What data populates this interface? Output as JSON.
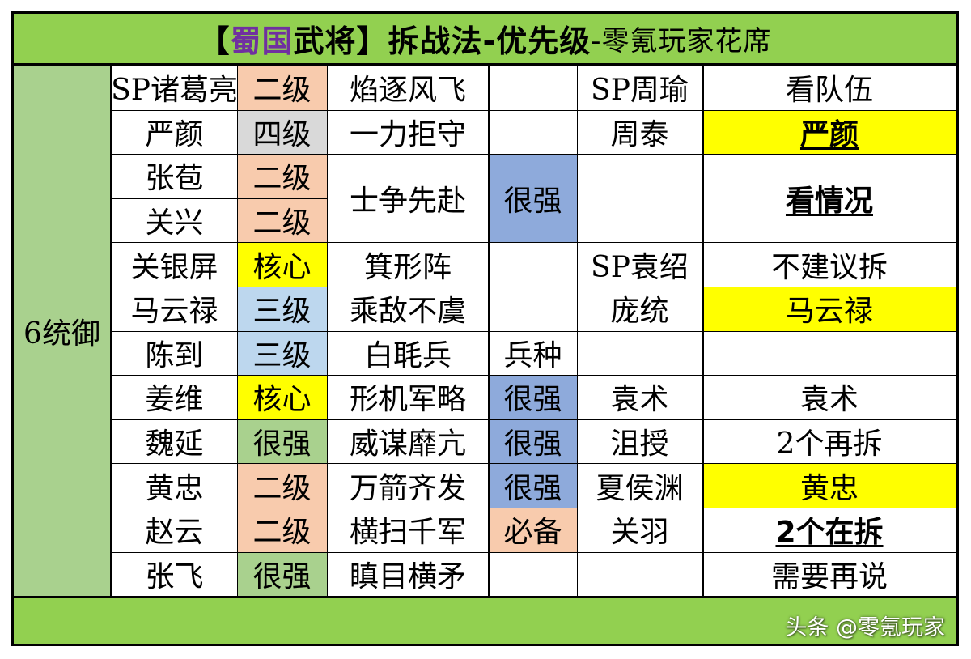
{
  "title": {
    "bracket_open": "【",
    "shu": "蜀国",
    "wujiang": "武将",
    "bracket_close": "】",
    "main": "拆战法-优先级",
    "author": "-零氪玩家花席"
  },
  "side_label": "6统御",
  "colors": {
    "header_green": "#92d050",
    "side_green": "#a9d18e",
    "orange": "#f8cbad",
    "gray": "#d9d9d9",
    "yellow": "#ffff00",
    "lightblue": "#bdd7ee",
    "green": "#a9d18e",
    "blue": "#8eaadb",
    "purple": "#7030a0"
  },
  "rows": [
    {
      "general": "SP诸葛亮",
      "rank": "二级",
      "rank_color": "orange",
      "tactic": "焰逐风飞",
      "eval": "",
      "eval_color": "",
      "target": "SP周瑜",
      "advice": "看队伍",
      "advice_color": "",
      "advice_style": ""
    },
    {
      "general": "严颜",
      "rank": "四级",
      "rank_color": "gray",
      "tactic": "一力拒守",
      "eval": "",
      "eval_color": "",
      "target": "周泰",
      "advice": "严颜",
      "advice_color": "yellow",
      "advice_style": "bold-ul"
    },
    {
      "general": "张苞",
      "rank": "二级",
      "rank_color": "orange",
      "tactic": "士争先赴",
      "eval": "很强",
      "eval_color": "blue",
      "target": "",
      "advice": "看情况",
      "advice_color": "",
      "advice_style": "bold-ul"
    },
    {
      "general": "关兴",
      "rank": "二级",
      "rank_color": "orange",
      "tactic": "",
      "eval": "",
      "eval_color": "",
      "target": "",
      "advice": "",
      "advice_color": "",
      "advice_style": ""
    },
    {
      "general": "关银屏",
      "rank": "核心",
      "rank_color": "yellow",
      "tactic": "箕形阵",
      "eval": "",
      "eval_color": "",
      "target": "SP袁绍",
      "advice": "不建议拆",
      "advice_color": "",
      "advice_style": ""
    },
    {
      "general": "马云禄",
      "rank": "三级",
      "rank_color": "lightblue",
      "tactic": "乘敌不虞",
      "eval": "",
      "eval_color": "",
      "target": "庞统",
      "advice": "马云禄",
      "advice_color": "yellow",
      "advice_style": ""
    },
    {
      "general": "陈到",
      "rank": "三级",
      "rank_color": "lightblue",
      "tactic": "白毦兵",
      "eval": "兵种",
      "eval_color": "",
      "target": "",
      "advice": "",
      "advice_color": "",
      "advice_style": ""
    },
    {
      "general": "姜维",
      "rank": "核心",
      "rank_color": "yellow",
      "tactic": "形机军略",
      "eval": "很强",
      "eval_color": "blue",
      "target": "袁术",
      "advice": "袁术",
      "advice_color": "",
      "advice_style": ""
    },
    {
      "general": "魏延",
      "rank": "很强",
      "rank_color": "green",
      "tactic": "威谋靡亢",
      "eval": "很强",
      "eval_color": "blue",
      "target": "沮授",
      "advice": "2个再拆",
      "advice_color": "",
      "advice_style": ""
    },
    {
      "general": "黄忠",
      "rank": "二级",
      "rank_color": "orange",
      "tactic": "万箭齐发",
      "eval": "很强",
      "eval_color": "blue",
      "target": "夏侯渊",
      "advice": "黄忠",
      "advice_color": "yellow",
      "advice_style": ""
    },
    {
      "general": "赵云",
      "rank": "二级",
      "rank_color": "orange",
      "tactic": "横扫千军",
      "eval": "必备",
      "eval_color": "orange",
      "target": "关羽",
      "advice": "2个在拆",
      "advice_color": "",
      "advice_style": "bold-ul"
    },
    {
      "general": "张飞",
      "rank": "很强",
      "rank_color": "green",
      "tactic": "瞋目横矛",
      "eval": "",
      "eval_color": "",
      "target": "",
      "advice": "需要再说",
      "advice_color": "",
      "advice_style": ""
    }
  ],
  "watermark": "头条 @零氪玩家"
}
